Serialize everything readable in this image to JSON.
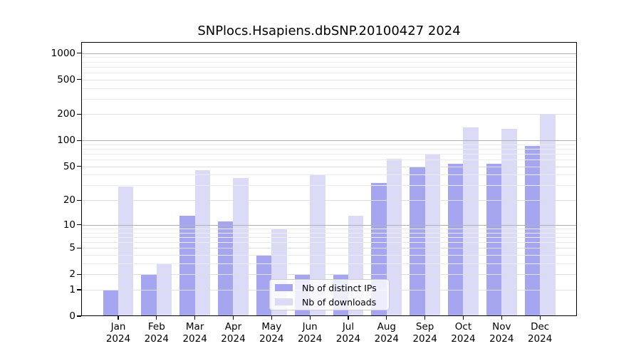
{
  "chart_data": {
    "type": "bar",
    "title": "SNPlocs.Hsapiens.dbSNP.20100427 2024",
    "categories": [
      "Jan",
      "Feb",
      "Mar",
      "Apr",
      "May",
      "Jun",
      "Jul",
      "Aug",
      "Sep",
      "Oct",
      "Nov",
      "Dec"
    ],
    "year_label": "2024",
    "series": [
      {
        "name": "Nb of distinct IPs",
        "color": "#a6a6f0",
        "values": [
          1,
          2,
          13,
          11,
          4,
          2,
          2,
          32,
          50,
          54,
          54,
          87
        ]
      },
      {
        "name": "Nb of downloads",
        "color": "#dbdbf8",
        "values": [
          29,
          3,
          45,
          37,
          9,
          40,
          13,
          62,
          70,
          140,
          137,
          199
        ]
      }
    ],
    "y_scale": "log10(1+v)",
    "ylim": [
      0,
      1340
    ],
    "y_ticks": [
      0,
      1,
      2,
      5,
      10,
      20,
      50,
      100,
      200,
      500,
      1000
    ],
    "y_minor_ticks": [
      3,
      4,
      6,
      7,
      8,
      9,
      30,
      40,
      60,
      70,
      80,
      90,
      300,
      400,
      600,
      700,
      800,
      900
    ],
    "grid": "horizontal",
    "legend_position": "inside-bottom-center"
  }
}
